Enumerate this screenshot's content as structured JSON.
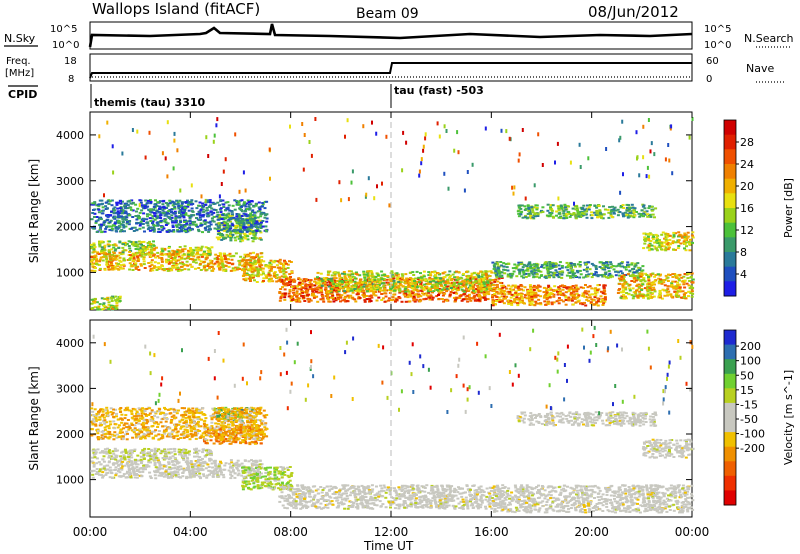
{
  "header": {
    "title": "Wallops Island (fitACF)",
    "beam": "Beam 09",
    "date": "08/Jun/2012"
  },
  "top_panel": {
    "nsky_label": "N.Sky",
    "nsky_ticks": [
      "10^5",
      "10^0"
    ],
    "nsearch_label": "N.Search",
    "nsearch_ticks": [
      "10^5",
      "10^0"
    ],
    "freq_label": "Freq.",
    "freq_unit": "[MHz]",
    "freq_ticks": [
      "18",
      "8"
    ],
    "nave_label": "Nave",
    "nave_ticks": [
      "60",
      "0"
    ],
    "cpid_label": "CPID",
    "cpid_segments": [
      {
        "label": "themis (tau) 3310",
        "start_hour": 0
      },
      {
        "label": "tau (fast) -503",
        "start_hour": 12
      }
    ]
  },
  "x_axis": {
    "title": "Time UT",
    "ticks": [
      "00:00",
      "04:00",
      "08:00",
      "12:00",
      "16:00",
      "20:00",
      "00:00"
    ]
  },
  "chart_data": [
    {
      "type": "heatmap",
      "name": "power-panel",
      "ylabel": "Slant Range [km]",
      "yticks": [
        "1000",
        "2000",
        "3000",
        "4000"
      ],
      "ylim": [
        180,
        4500
      ],
      "xlim": [
        0,
        24
      ],
      "colorbar": {
        "label": "Power [dB]",
        "ticks": [
          "4",
          "8",
          "12",
          "16",
          "20",
          "24",
          "28"
        ],
        "range": [
          0,
          32
        ],
        "colors": [
          "#1e1ee6",
          "#1f4fbf",
          "#2a7a9a",
          "#3a9a6a",
          "#4cc13a",
          "#9ad21a",
          "#e8e010",
          "#f0b000",
          "#f08000",
          "#f05000",
          "#e02000",
          "#d00000"
        ]
      },
      "bands": [
        {
          "x": [
            0.0,
            6.8
          ],
          "y": [
            1050,
            1450
          ],
          "level": 0.62
        },
        {
          "x": [
            0.0,
            2.5
          ],
          "y": [
            1450,
            1700
          ],
          "level": 0.45
        },
        {
          "x": [
            2.0,
            4.8
          ],
          "y": [
            1400,
            1600
          ],
          "level": 0.55
        },
        {
          "x": [
            5.0,
            6.8
          ],
          "y": [
            1700,
            2300
          ],
          "level": 0.4
        },
        {
          "x": [
            6.0,
            8.0
          ],
          "y": [
            800,
            1300
          ],
          "level": 0.6
        },
        {
          "x": [
            7.5,
            16.5
          ],
          "y": [
            380,
            900
          ],
          "level": 0.78
        },
        {
          "x": [
            9.0,
            16.0
          ],
          "y": [
            600,
            1050
          ],
          "level": 0.5
        },
        {
          "x": [
            16.0,
            20.5
          ],
          "y": [
            300,
            750
          ],
          "level": 0.7
        },
        {
          "x": [
            16.0,
            22.0
          ],
          "y": [
            900,
            1250
          ],
          "level": 0.3
        },
        {
          "x": [
            21.0,
            24.0
          ],
          "y": [
            450,
            1000
          ],
          "level": 0.6
        },
        {
          "x": [
            17.0,
            22.5
          ],
          "y": [
            2200,
            2500
          ],
          "level": 0.35
        },
        {
          "x": [
            22.0,
            24.0
          ],
          "y": [
            1500,
            1900
          ],
          "level": 0.55
        },
        {
          "x": [
            0.0,
            7.0
          ],
          "y": [
            1900,
            2600
          ],
          "level": 0.18
        },
        {
          "x": [
            0.0,
            1.2
          ],
          "y": [
            200,
            500
          ],
          "level": 0.5
        }
      ]
    },
    {
      "type": "heatmap",
      "name": "velocity-panel",
      "ylabel": "Slant Range [km]",
      "yticks": [
        "1000",
        "2000",
        "3000",
        "4000"
      ],
      "ylim": [
        180,
        4500
      ],
      "xlim": [
        0,
        24
      ],
      "colorbar": {
        "label": "Velocity [m s^-1]",
        "ticks": [
          "200",
          "100",
          "50",
          "15",
          "-15",
          "-50",
          "-100",
          "-200"
        ],
        "range": [
          -250,
          250
        ],
        "colors": [
          "#1e2ad0",
          "#2d6eb0",
          "#3aa050",
          "#70d030",
          "#b8d020",
          "#c8c8c0",
          "#c8c8c0",
          "#f0c000",
          "#f09000",
          "#f06000",
          "#f03000",
          "#e00000"
        ]
      },
      "bands": [
        {
          "x": [
            0.0,
            6.8
          ],
          "y": [
            1050,
            1450
          ],
          "level": 0.0
        },
        {
          "x": [
            0.0,
            4.8
          ],
          "y": [
            1450,
            1700
          ],
          "level": 0.1
        },
        {
          "x": [
            4.5,
            6.8
          ],
          "y": [
            1800,
            2200
          ],
          "level": -0.5
        },
        {
          "x": [
            5.0,
            6.5
          ],
          "y": [
            2300,
            2600
          ],
          "level": 0.6
        },
        {
          "x": [
            6.0,
            8.0
          ],
          "y": [
            800,
            1300
          ],
          "level": 0.3
        },
        {
          "x": [
            7.5,
            16.5
          ],
          "y": [
            380,
            900
          ],
          "level": 0.0
        },
        {
          "x": [
            16.0,
            24.0
          ],
          "y": [
            300,
            900
          ],
          "level": 0.0
        },
        {
          "x": [
            17.0,
            22.5
          ],
          "y": [
            2200,
            2500
          ],
          "level": 0.0
        },
        {
          "x": [
            22.0,
            24.0
          ],
          "y": [
            1500,
            1900
          ],
          "level": 0.0
        },
        {
          "x": [
            0.0,
            7.0
          ],
          "y": [
            1900,
            2600
          ],
          "level": -0.3
        }
      ]
    }
  ]
}
